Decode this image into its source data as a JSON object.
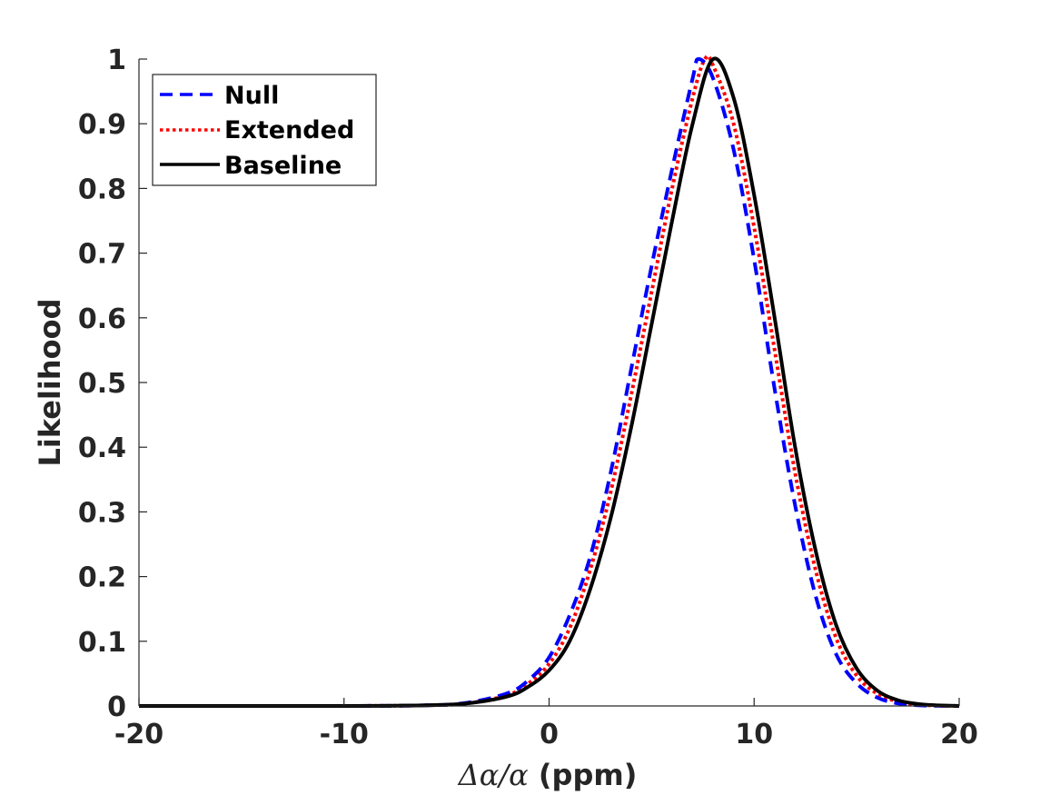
{
  "chart_data": {
    "type": "line",
    "xlabel_parts": {
      "delta": "Δ",
      "alpha1": "α",
      "slash": "/",
      "alpha2": "α",
      "units": " (ppm)"
    },
    "ylabel": "Likelihood",
    "xlim": [
      -20,
      20
    ],
    "ylim": [
      0,
      1
    ],
    "xticks": [
      -20,
      -10,
      0,
      10,
      20
    ],
    "xtick_labels": [
      "-20",
      "-10",
      "0",
      "10",
      "20"
    ],
    "yticks": [
      0,
      0.1,
      0.2,
      0.3,
      0.4,
      0.5,
      0.6,
      0.7,
      0.8,
      0.9,
      1
    ],
    "ytick_labels": [
      "0",
      "0.1",
      "0.2",
      "0.3",
      "0.4",
      "0.5",
      "0.6",
      "0.7",
      "0.8",
      "0.9",
      "1"
    ],
    "grid": false,
    "legend_position": "top-left",
    "series": [
      {
        "name": "Null",
        "style": "dashed",
        "color": "#0000ff",
        "x": [
          -20,
          -10,
          -6,
          -4,
          -2,
          -1,
          0,
          1,
          2,
          3,
          4,
          5,
          6,
          7,
          7.3,
          8,
          9,
          10,
          11,
          12,
          13,
          14,
          15,
          16,
          17,
          18,
          19,
          20
        ],
        "y": [
          0,
          0,
          0.001,
          0.005,
          0.02,
          0.04,
          0.075,
          0.14,
          0.23,
          0.36,
          0.52,
          0.68,
          0.83,
          0.97,
          1.0,
          0.97,
          0.86,
          0.69,
          0.49,
          0.31,
          0.17,
          0.08,
          0.035,
          0.013,
          0.004,
          0.001,
          0.0003,
          0
        ]
      },
      {
        "name": "Extended",
        "style": "dotted",
        "color": "#ff0000",
        "x": [
          -20,
          -10,
          -6,
          -4,
          -2,
          -1,
          0,
          1,
          2,
          3,
          4,
          5,
          6,
          7,
          7.6,
          8,
          9,
          10,
          11,
          12,
          13,
          14,
          15,
          16,
          17,
          18,
          19,
          20
        ],
        "y": [
          0,
          0,
          0.001,
          0.004,
          0.017,
          0.035,
          0.065,
          0.12,
          0.21,
          0.33,
          0.48,
          0.64,
          0.8,
          0.94,
          1.0,
          0.99,
          0.9,
          0.74,
          0.55,
          0.36,
          0.21,
          0.105,
          0.047,
          0.019,
          0.007,
          0.002,
          0.0005,
          0
        ]
      },
      {
        "name": "Baseline",
        "style": "solid",
        "color": "#000000",
        "x": [
          -20,
          -10,
          -6,
          -4,
          -2,
          -1,
          0,
          1,
          2,
          3,
          4,
          5,
          6,
          7,
          8,
          9,
          10,
          11,
          12,
          13,
          14,
          15,
          16,
          17,
          18,
          19,
          20
        ],
        "y": [
          0,
          0,
          0.001,
          0.004,
          0.015,
          0.03,
          0.055,
          0.1,
          0.18,
          0.29,
          0.43,
          0.59,
          0.75,
          0.9,
          1.0,
          0.94,
          0.79,
          0.6,
          0.4,
          0.24,
          0.125,
          0.058,
          0.024,
          0.009,
          0.003,
          0.0008,
          0
        ]
      }
    ]
  }
}
